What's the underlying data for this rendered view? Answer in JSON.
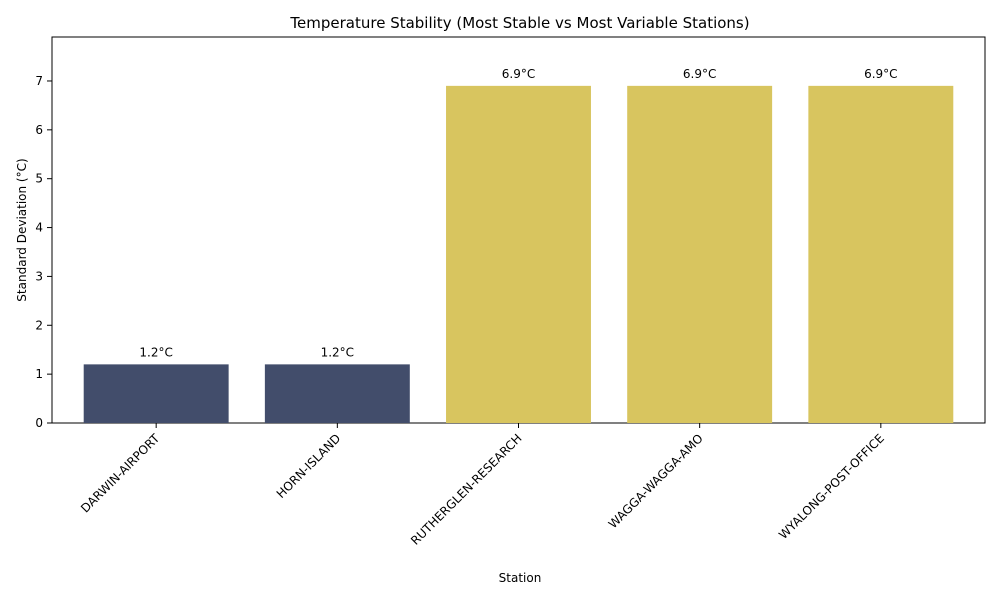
{
  "chart_data": {
    "type": "bar",
    "title": "Temperature Stability (Most Stable vs Most Variable Stations)",
    "xlabel": "Station",
    "ylabel": "Standard Deviation (°C)",
    "categories": [
      "DARWIN-AIRPORT",
      "HORN-ISLAND",
      "RUTHERGLEN-RESEARCH",
      "WAGGA-WAGGA-AMO",
      "WYALONG-POST-OFFICE"
    ],
    "values": [
      1.2,
      1.2,
      6.9,
      6.9,
      6.9
    ],
    "data_labels": [
      "1.2°C",
      "1.2°C",
      "6.9°C",
      "6.9°C",
      "6.9°C"
    ],
    "bar_colors": [
      "#424d6b",
      "#424d6b",
      "#d8c55f",
      "#d8c55f",
      "#d8c55f"
    ],
    "ylim": [
      0,
      7.9
    ],
    "yticks": [
      0,
      1,
      2,
      3,
      4,
      5,
      6,
      7
    ],
    "grid": false,
    "legend": "none"
  }
}
